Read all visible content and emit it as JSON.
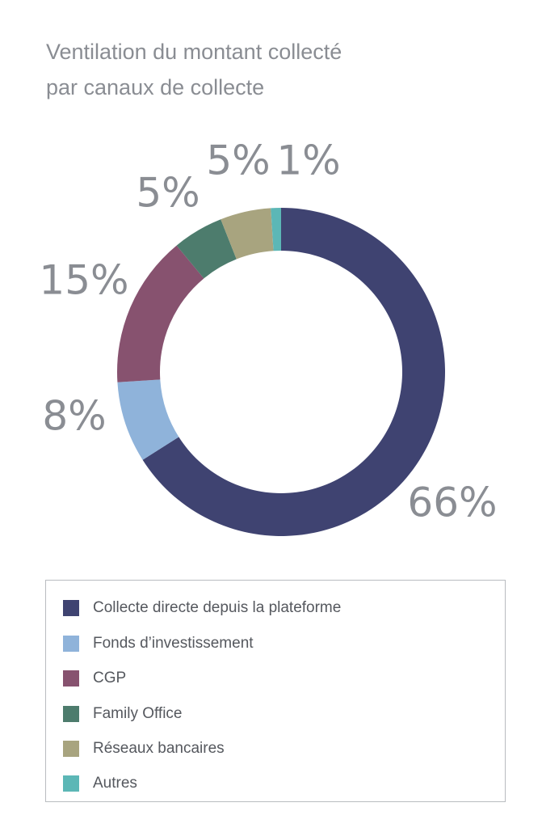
{
  "chart_data": {
    "type": "pie",
    "variant": "donut",
    "title_lines": [
      "Ventilation du montant collecté",
      "par canaux de collecte"
    ],
    "categories": [
      "Collecte directe depuis la plateforme",
      "Fonds d’investissement",
      "CGP",
      "Family Office",
      "Réseaux bancaires",
      "Autres"
    ],
    "values": [
      66,
      8,
      15,
      5,
      5,
      1
    ],
    "data_labels": [
      "66%",
      "8%",
      "15%",
      "5%",
      "5%",
      "1%"
    ],
    "colors": [
      "#3f4371",
      "#8fb3da",
      "#87526f",
      "#4d7c6d",
      "#a8a47f",
      "#5cb7b6"
    ],
    "legend_placement": "bottom",
    "start_angle_deg": 0,
    "direction": "clockwise"
  }
}
